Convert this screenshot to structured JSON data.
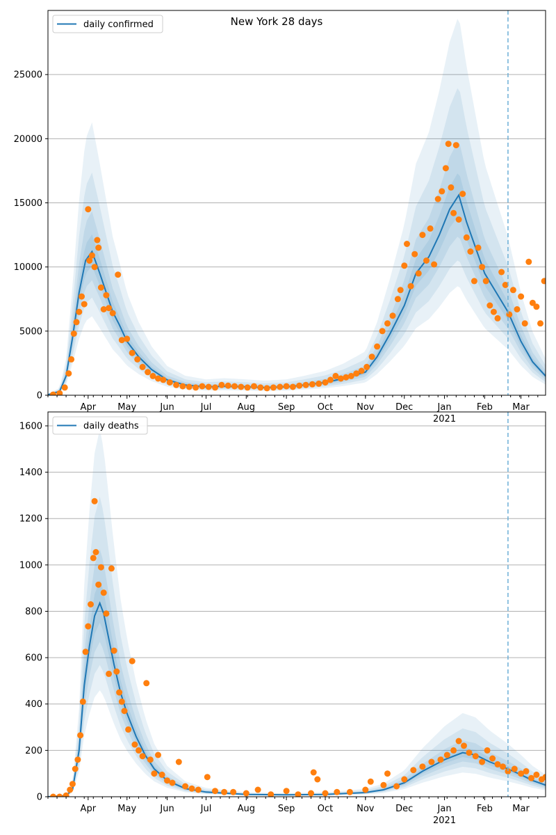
{
  "chart_data": [
    {
      "type": "line",
      "title": "New York 28 days",
      "legend": "daily confirmed",
      "legend_position": "top-left",
      "grid": "y",
      "ylim": [
        0,
        30000
      ],
      "yticks": [
        0,
        5000,
        10000,
        15000,
        20000,
        25000
      ],
      "xlim": [
        "2020-03-01",
        "2021-03-20"
      ],
      "xticks": [
        {
          "date": "2020-04-01",
          "label": "Apr"
        },
        {
          "date": "2020-05-01",
          "label": "May"
        },
        {
          "date": "2020-06-01",
          "label": "Jun"
        },
        {
          "date": "2020-07-01",
          "label": "Jul"
        },
        {
          "date": "2020-08-01",
          "label": "Aug"
        },
        {
          "date": "2020-09-01",
          "label": "Sep"
        },
        {
          "date": "2020-10-01",
          "label": "Oct"
        },
        {
          "date": "2020-11-01",
          "label": "Nov"
        },
        {
          "date": "2020-12-01",
          "label": "Dec"
        },
        {
          "date": "2021-01-01",
          "label": "Jan"
        },
        {
          "date": "2021-02-01",
          "label": "Feb"
        },
        {
          "date": "2021-03-01",
          "label": "Mar"
        }
      ],
      "year_label": {
        "date": "2021-01-01",
        "label": "2021"
      },
      "vline_date": "2021-02-19",
      "line_color": "#1f77b4",
      "point_color": "#ff7f0e",
      "band_color": "#1f77b4",
      "model_line": [
        [
          "2020-03-01",
          50
        ],
        [
          "2020-03-10",
          300
        ],
        [
          "2020-03-15",
          1500
        ],
        [
          "2020-03-20",
          4500
        ],
        [
          "2020-03-25",
          8000
        ],
        [
          "2020-03-30",
          10500
        ],
        [
          "2020-04-04",
          11200
        ],
        [
          "2020-04-10",
          9500
        ],
        [
          "2020-04-15",
          8000
        ],
        [
          "2020-04-20",
          6500
        ],
        [
          "2020-04-25",
          5500
        ],
        [
          "2020-05-01",
          4200
        ],
        [
          "2020-05-10",
          3000
        ],
        [
          "2020-05-20",
          2000
        ],
        [
          "2020-06-01",
          1200
        ],
        [
          "2020-06-15",
          800
        ],
        [
          "2020-07-01",
          650
        ],
        [
          "2020-07-15",
          700
        ],
        [
          "2020-08-01",
          650
        ],
        [
          "2020-08-15",
          600
        ],
        [
          "2020-09-01",
          650
        ],
        [
          "2020-09-15",
          800
        ],
        [
          "2020-10-01",
          1000
        ],
        [
          "2020-10-15",
          1300
        ],
        [
          "2020-11-01",
          1800
        ],
        [
          "2020-11-10",
          3000
        ],
        [
          "2020-11-20",
          4800
        ],
        [
          "2020-12-01",
          7000
        ],
        [
          "2020-12-10",
          9500
        ],
        [
          "2020-12-20",
          10800
        ],
        [
          "2020-12-28",
          12500
        ],
        [
          "2021-01-05",
          14500
        ],
        [
          "2021-01-12",
          15600
        ],
        [
          "2021-01-18",
          13500
        ],
        [
          "2021-01-25",
          11500
        ],
        [
          "2021-02-01",
          9500
        ],
        [
          "2021-02-10",
          8000
        ],
        [
          "2021-02-19",
          6500
        ],
        [
          "2021-03-01",
          4200
        ],
        [
          "2021-03-10",
          2600
        ],
        [
          "2021-03-20",
          1500
        ]
      ],
      "points": [
        [
          "2020-03-05",
          50
        ],
        [
          "2020-03-10",
          150
        ],
        [
          "2020-03-14",
          600
        ],
        [
          "2020-03-17",
          1700
        ],
        [
          "2020-03-19",
          2800
        ],
        [
          "2020-03-21",
          4800
        ],
        [
          "2020-03-23",
          5700
        ],
        [
          "2020-03-25",
          6500
        ],
        [
          "2020-03-27",
          7700
        ],
        [
          "2020-03-29",
          7100
        ],
        [
          "2020-04-01",
          14500
        ],
        [
          "2020-04-02",
          10500
        ],
        [
          "2020-04-04",
          10900
        ],
        [
          "2020-04-06",
          10000
        ],
        [
          "2020-04-08",
          12100
        ],
        [
          "2020-04-09",
          11500
        ],
        [
          "2020-04-11",
          8400
        ],
        [
          "2020-04-13",
          6700
        ],
        [
          "2020-04-15",
          7800
        ],
        [
          "2020-04-17",
          6800
        ],
        [
          "2020-04-20",
          6400
        ],
        [
          "2020-04-24",
          9400
        ],
        [
          "2020-04-27",
          4300
        ],
        [
          "2020-05-01",
          4400
        ],
        [
          "2020-05-05",
          3300
        ],
        [
          "2020-05-09",
          2800
        ],
        [
          "2020-05-13",
          2200
        ],
        [
          "2020-05-17",
          1800
        ],
        [
          "2020-05-21",
          1500
        ],
        [
          "2020-05-25",
          1300
        ],
        [
          "2020-05-29",
          1200
        ],
        [
          "2020-06-03",
          1000
        ],
        [
          "2020-06-08",
          800
        ],
        [
          "2020-06-13",
          700
        ],
        [
          "2020-06-18",
          650
        ],
        [
          "2020-06-23",
          600
        ],
        [
          "2020-06-28",
          700
        ],
        [
          "2020-07-03",
          650
        ],
        [
          "2020-07-08",
          600
        ],
        [
          "2020-07-13",
          800
        ],
        [
          "2020-07-18",
          750
        ],
        [
          "2020-07-23",
          700
        ],
        [
          "2020-07-28",
          650
        ],
        [
          "2020-08-02",
          600
        ],
        [
          "2020-08-07",
          700
        ],
        [
          "2020-08-12",
          600
        ],
        [
          "2020-08-17",
          550
        ],
        [
          "2020-08-22",
          600
        ],
        [
          "2020-08-27",
          650
        ],
        [
          "2020-09-01",
          700
        ],
        [
          "2020-09-06",
          650
        ],
        [
          "2020-09-11",
          750
        ],
        [
          "2020-09-16",
          800
        ],
        [
          "2020-09-21",
          850
        ],
        [
          "2020-09-26",
          900
        ],
        [
          "2020-10-01",
          1000
        ],
        [
          "2020-10-05",
          1200
        ],
        [
          "2020-10-09",
          1500
        ],
        [
          "2020-10-13",
          1300
        ],
        [
          "2020-10-17",
          1400
        ],
        [
          "2020-10-21",
          1500
        ],
        [
          "2020-10-25",
          1700
        ],
        [
          "2020-10-29",
          1900
        ],
        [
          "2020-11-02",
          2200
        ],
        [
          "2020-11-06",
          3000
        ],
        [
          "2020-11-10",
          3800
        ],
        [
          "2020-11-14",
          5000
        ],
        [
          "2020-11-18",
          5600
        ],
        [
          "2020-11-22",
          6200
        ],
        [
          "2020-11-26",
          7500
        ],
        [
          "2020-11-28",
          8200
        ],
        [
          "2020-12-01",
          10100
        ],
        [
          "2020-12-03",
          11800
        ],
        [
          "2020-12-06",
          8500
        ],
        [
          "2020-12-09",
          11000
        ],
        [
          "2020-12-12",
          9500
        ],
        [
          "2020-12-15",
          12500
        ],
        [
          "2020-12-18",
          10500
        ],
        [
          "2020-12-21",
          13000
        ],
        [
          "2020-12-24",
          10200
        ],
        [
          "2020-12-27",
          15300
        ],
        [
          "2020-12-30",
          15900
        ],
        [
          "2021-01-02",
          17700
        ],
        [
          "2021-01-04",
          19600
        ],
        [
          "2021-01-06",
          16200
        ],
        [
          "2021-01-08",
          14200
        ],
        [
          "2021-01-10",
          19500
        ],
        [
          "2021-01-12",
          13700
        ],
        [
          "2021-01-15",
          15700
        ],
        [
          "2021-01-18",
          12300
        ],
        [
          "2021-01-21",
          11200
        ],
        [
          "2021-01-24",
          8900
        ],
        [
          "2021-01-27",
          11500
        ],
        [
          "2021-01-30",
          10000
        ],
        [
          "2021-02-02",
          8900
        ],
        [
          "2021-02-05",
          7000
        ],
        [
          "2021-02-08",
          6500
        ],
        [
          "2021-02-11",
          6000
        ],
        [
          "2021-02-14",
          9600
        ],
        [
          "2021-02-17",
          8600
        ],
        [
          "2021-02-20",
          6300
        ],
        [
          "2021-02-23",
          8200
        ],
        [
          "2021-02-26",
          6700
        ],
        [
          "2021-03-01",
          7700
        ],
        [
          "2021-03-04",
          5600
        ],
        [
          "2021-03-07",
          10400
        ],
        [
          "2021-03-10",
          7200
        ],
        [
          "2021-03-13",
          6900
        ],
        [
          "2021-03-16",
          5600
        ],
        [
          "2021-03-19",
          8900
        ]
      ]
    },
    {
      "type": "line",
      "title": "",
      "legend": "daily deaths",
      "legend_position": "top-left",
      "grid": "y",
      "ylim": [
        0,
        1660
      ],
      "yticks": [
        0,
        200,
        400,
        600,
        800,
        1000,
        1200,
        1400,
        1600
      ],
      "xlim": [
        "2020-03-01",
        "2021-03-20"
      ],
      "xticks": [
        {
          "date": "2020-04-01",
          "label": "Apr"
        },
        {
          "date": "2020-05-01",
          "label": "May"
        },
        {
          "date": "2020-06-01",
          "label": "Jun"
        },
        {
          "date": "2020-07-01",
          "label": "Jul"
        },
        {
          "date": "2020-08-01",
          "label": "Aug"
        },
        {
          "date": "2020-09-01",
          "label": "Sep"
        },
        {
          "date": "2020-10-01",
          "label": "Oct"
        },
        {
          "date": "2020-11-01",
          "label": "Nov"
        },
        {
          "date": "2020-12-01",
          "label": "Dec"
        },
        {
          "date": "2021-01-01",
          "label": "Jan"
        },
        {
          "date": "2021-02-01",
          "label": "Feb"
        },
        {
          "date": "2021-03-01",
          "label": "Mar"
        }
      ],
      "year_label": {
        "date": "2021-01-01",
        "label": "2021"
      },
      "vline_date": "2021-02-19",
      "line_color": "#1f77b4",
      "point_color": "#ff7f0e",
      "band_color": "#1f77b4",
      "model_line": [
        [
          "2020-03-01",
          0
        ],
        [
          "2020-03-15",
          5
        ],
        [
          "2020-03-20",
          30
        ],
        [
          "2020-03-25",
          200
        ],
        [
          "2020-03-29",
          480
        ],
        [
          "2020-04-02",
          650
        ],
        [
          "2020-04-06",
          780
        ],
        [
          "2020-04-10",
          835
        ],
        [
          "2020-04-13",
          790
        ],
        [
          "2020-04-17",
          680
        ],
        [
          "2020-04-21",
          570
        ],
        [
          "2020-04-26",
          450
        ],
        [
          "2020-05-01",
          360
        ],
        [
          "2020-05-08",
          260
        ],
        [
          "2020-05-15",
          180
        ],
        [
          "2020-05-22",
          120
        ],
        [
          "2020-06-01",
          70
        ],
        [
          "2020-06-15",
          35
        ],
        [
          "2020-07-01",
          20
        ],
        [
          "2020-08-01",
          10
        ],
        [
          "2020-09-01",
          8
        ],
        [
          "2020-10-01",
          10
        ],
        [
          "2020-11-01",
          18
        ],
        [
          "2020-11-15",
          30
        ],
        [
          "2020-12-01",
          60
        ],
        [
          "2020-12-15",
          110
        ],
        [
          "2021-01-01",
          160
        ],
        [
          "2021-01-15",
          190
        ],
        [
          "2021-01-25",
          180
        ],
        [
          "2021-02-05",
          150
        ],
        [
          "2021-02-19",
          120
        ],
        [
          "2021-03-01",
          95
        ],
        [
          "2021-03-10",
          70
        ],
        [
          "2021-03-20",
          50
        ]
      ],
      "points": [
        [
          "2020-03-05",
          0
        ],
        [
          "2020-03-10",
          0
        ],
        [
          "2020-03-15",
          5
        ],
        [
          "2020-03-18",
          30
        ],
        [
          "2020-03-20",
          55
        ],
        [
          "2020-03-22",
          120
        ],
        [
          "2020-03-24",
          160
        ],
        [
          "2020-03-26",
          265
        ],
        [
          "2020-03-28",
          410
        ],
        [
          "2020-03-30",
          625
        ],
        [
          "2020-04-01",
          735
        ],
        [
          "2020-04-03",
          830
        ],
        [
          "2020-04-05",
          1030
        ],
        [
          "2020-04-06",
          1275
        ],
        [
          "2020-04-07",
          1055
        ],
        [
          "2020-04-09",
          915
        ],
        [
          "2020-04-11",
          990
        ],
        [
          "2020-04-13",
          880
        ],
        [
          "2020-04-15",
          790
        ],
        [
          "2020-04-17",
          530
        ],
        [
          "2020-04-19",
          985
        ],
        [
          "2020-04-21",
          630
        ],
        [
          "2020-04-23",
          540
        ],
        [
          "2020-04-25",
          450
        ],
        [
          "2020-04-27",
          410
        ],
        [
          "2020-04-29",
          370
        ],
        [
          "2020-05-02",
          290
        ],
        [
          "2020-05-05",
          585
        ],
        [
          "2020-05-07",
          225
        ],
        [
          "2020-05-10",
          200
        ],
        [
          "2020-05-13",
          175
        ],
        [
          "2020-05-16",
          490
        ],
        [
          "2020-05-19",
          160
        ],
        [
          "2020-05-22",
          100
        ],
        [
          "2020-05-25",
          180
        ],
        [
          "2020-05-28",
          95
        ],
        [
          "2020-06-01",
          70
        ],
        [
          "2020-06-05",
          60
        ],
        [
          "2020-06-10",
          150
        ],
        [
          "2020-06-15",
          45
        ],
        [
          "2020-06-20",
          35
        ],
        [
          "2020-06-25",
          30
        ],
        [
          "2020-07-02",
          85
        ],
        [
          "2020-07-08",
          25
        ],
        [
          "2020-07-15",
          20
        ],
        [
          "2020-07-22",
          20
        ],
        [
          "2020-08-01",
          15
        ],
        [
          "2020-08-10",
          30
        ],
        [
          "2020-08-20",
          10
        ],
        [
          "2020-09-01",
          25
        ],
        [
          "2020-09-10",
          10
        ],
        [
          "2020-09-20",
          15
        ],
        [
          "2020-09-22",
          105
        ],
        [
          "2020-09-25",
          75
        ],
        [
          "2020-10-01",
          15
        ],
        [
          "2020-10-10",
          20
        ],
        [
          "2020-10-20",
          20
        ],
        [
          "2020-11-01",
          30
        ],
        [
          "2020-11-05",
          65
        ],
        [
          "2020-11-15",
          50
        ],
        [
          "2020-11-18",
          100
        ],
        [
          "2020-11-25",
          45
        ],
        [
          "2020-12-01",
          75
        ],
        [
          "2020-12-08",
          115
        ],
        [
          "2020-12-15",
          130
        ],
        [
          "2020-12-22",
          150
        ],
        [
          "2020-12-29",
          160
        ],
        [
          "2021-01-03",
          180
        ],
        [
          "2021-01-08",
          200
        ],
        [
          "2021-01-12",
          240
        ],
        [
          "2021-01-16",
          220
        ],
        [
          "2021-01-20",
          190
        ],
        [
          "2021-01-25",
          175
        ],
        [
          "2021-01-30",
          150
        ],
        [
          "2021-02-03",
          200
        ],
        [
          "2021-02-07",
          165
        ],
        [
          "2021-02-11",
          140
        ],
        [
          "2021-02-15",
          130
        ],
        [
          "2021-02-19",
          110
        ],
        [
          "2021-02-24",
          120
        ],
        [
          "2021-03-01",
          100
        ],
        [
          "2021-03-05",
          110
        ],
        [
          "2021-03-09",
          80
        ],
        [
          "2021-03-13",
          95
        ],
        [
          "2021-03-17",
          75
        ],
        [
          "2021-03-20",
          85
        ]
      ]
    }
  ]
}
